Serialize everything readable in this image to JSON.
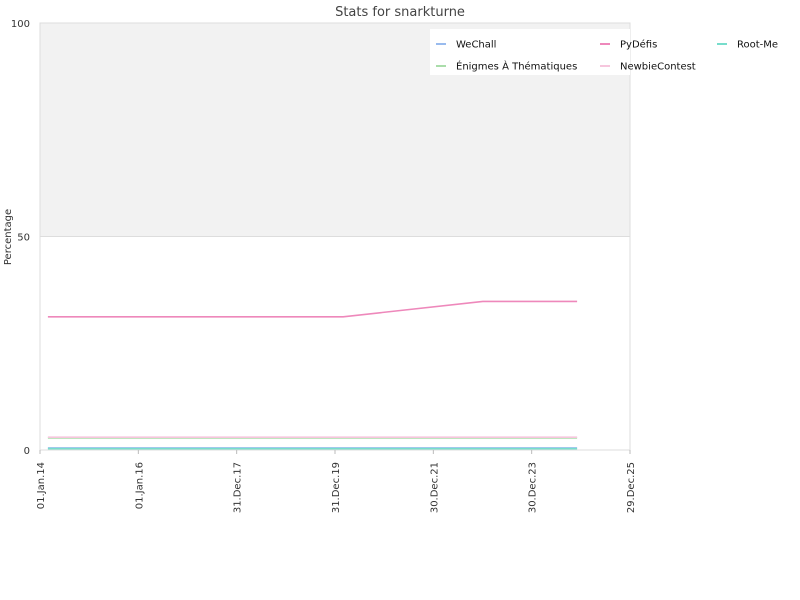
{
  "chart_data": {
    "type": "line",
    "title": "Stats for snarkturne",
    "ylabel": "Percentage",
    "xlabel": "",
    "ylim": [
      0,
      100
    ],
    "yticks": [
      "0",
      "50",
      "100"
    ],
    "x_dates": [
      "2014-01-01",
      "2016-01-01",
      "2017-12-31",
      "2019-12-31",
      "2021-12-30",
      "2023-12-30",
      "2025-12-29"
    ],
    "xticks": [
      "01.Jan.14",
      "01.Jan.16",
      "31.Dec.17",
      "31.Dec.19",
      "30.Dec.21",
      "30.Dec.23",
      "29.Dec.25"
    ],
    "x_range": [
      "2014-01-01",
      "2025-12-29"
    ],
    "upper_band": [
      50,
      100
    ],
    "legend_position": "top-right",
    "series": [
      {
        "name": "WeChall",
        "color": "#99bbee",
        "points": [
          [
            "2014-03-01",
            0.5
          ],
          [
            "2024-12-01",
            0.5
          ]
        ]
      },
      {
        "name": "PyDéfis",
        "color": "#ee88bb",
        "points": [
          [
            "2014-03-01",
            31.2
          ],
          [
            "2020-03-01",
            31.2
          ],
          [
            "2023-01-01",
            34.8
          ],
          [
            "2024-12-01",
            34.8
          ]
        ]
      },
      {
        "name": "Root-Me",
        "color": "#77ddcc",
        "points": [
          [
            "2014-03-01",
            0.3
          ],
          [
            "2024-12-01",
            0.3
          ]
        ]
      },
      {
        "name": "Énigmes À Thématiques",
        "color": "#aaddaa",
        "points": [
          [
            "2014-03-01",
            2.8
          ],
          [
            "2024-12-01",
            2.8
          ]
        ]
      },
      {
        "name": "NewbieContest",
        "color": "#f6c6dd",
        "points": [
          [
            "2014-03-01",
            3.0
          ],
          [
            "2024-12-01",
            3.0
          ]
        ]
      }
    ]
  }
}
